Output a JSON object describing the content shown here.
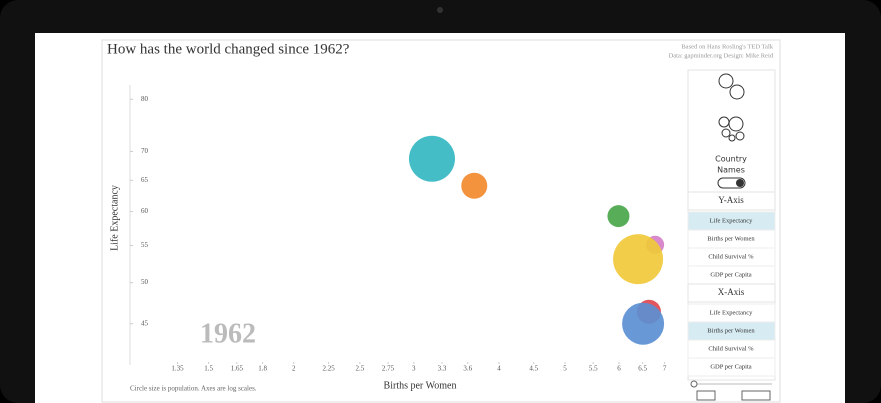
{
  "chart_data": {
    "type": "bubble",
    "title": "How has the world changed since 1962?",
    "credits": [
      "Based on Hans Rosling's TED Talk",
      "Data: gapminder.org     Design: Mike Reid"
    ],
    "x_label": "Births per Women",
    "y_label": "Life Expectancy",
    "year_label": "1962",
    "note": "Circle size is population. Axes are log scales.",
    "log_x": true,
    "log_y": true,
    "xlim": [
      1.15,
      7.5
    ],
    "ylim": [
      41,
      83
    ],
    "xticks": [
      1.35,
      1.5,
      1.65,
      1.8,
      2,
      2.25,
      2.5,
      2.75,
      3,
      3.3,
      3.6,
      4,
      4.5,
      5,
      5.5,
      6,
      6.5,
      7
    ],
    "yticks": [
      45,
      50,
      55,
      60,
      65,
      70,
      80
    ],
    "x": [
      3.19,
      3.68,
      5.99,
      6.78,
      6.4,
      6.64,
      6.51
    ],
    "y": [
      68.7,
      64.1,
      59.3,
      55.1,
      53.1,
      46.4,
      45
    ],
    "sizes": [
      529,
      169,
      121,
      81,
      625,
      144,
      441
    ],
    "colors": [
      "#35b7c1",
      "#f28a2e",
      "#4aa64a",
      "#d580c8",
      "#f0c93a",
      "#e04850",
      "#5b8fd1"
    ],
    "controls": {
      "country_names": [
        "Country",
        "Names"
      ],
      "y_axis": {
        "title": "Y-Axis",
        "options": [
          "Life Expectancy",
          "Births per Women",
          "Child Survival %",
          "GDP per Capita"
        ],
        "selected": 0
      },
      "x_axis": {
        "title": "X-Axis",
        "options": [
          "Life Expectancy",
          "Births per Women",
          "Child Survival %",
          "GDP per Capita"
        ],
        "selected": 1
      }
    }
  }
}
